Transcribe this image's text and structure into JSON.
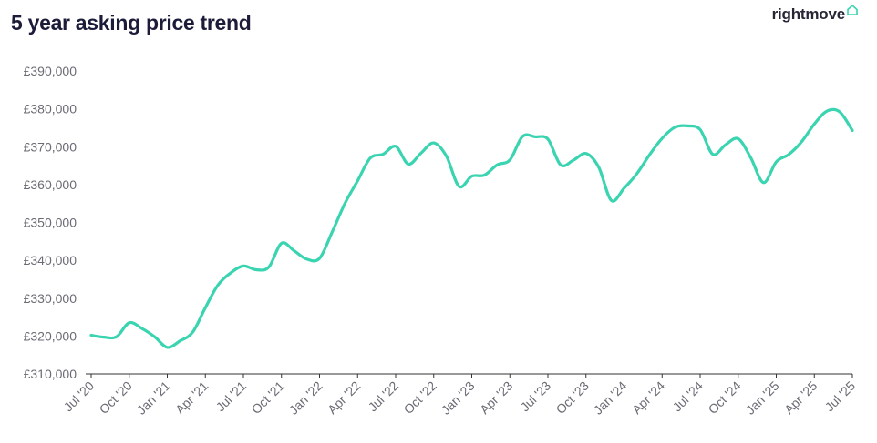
{
  "header": {
    "title": "5 year asking price trend",
    "brand": "rightmove",
    "brand_icon": "house-icon"
  },
  "colors": {
    "line": "#3ad4b1",
    "axis": "#333333",
    "text": "#6b6b75",
    "brand_icon": "#3ad4b1"
  },
  "chart_data": {
    "type": "line",
    "title": "5 year asking price trend",
    "xlabel": "",
    "ylabel": "",
    "grid": false,
    "ylim": [
      310000,
      390000
    ],
    "yticks": [
      310000,
      320000,
      330000,
      340000,
      350000,
      360000,
      370000,
      380000,
      390000
    ],
    "ytick_labels": [
      "£310,000",
      "£320,000",
      "£330,000",
      "£340,000",
      "£350,000",
      "£360,000",
      "£370,000",
      "£380,000",
      "£390,000"
    ],
    "xtick_labels": [
      "Jul '20",
      "Oct '20",
      "Jan '21",
      "Apr '21",
      "Jul '21",
      "Oct '21",
      "Jan '22",
      "Apr '22",
      "Jul '22",
      "Oct '22",
      "Jan '23",
      "Apr '23",
      "Jul '23",
      "Oct '23",
      "Jan '24",
      "Apr '24",
      "Jul '24",
      "Oct '24",
      "Jan '25",
      "Apr '25",
      "Jul '25"
    ],
    "x_unit": "month",
    "series": [
      {
        "x": [
          "2020-07",
          "2020-08",
          "2020-09",
          "2020-10",
          "2020-11",
          "2020-12",
          "2021-01",
          "2021-02",
          "2021-03",
          "2021-04",
          "2021-05",
          "2021-06",
          "2021-07",
          "2021-08",
          "2021-09",
          "2021-10",
          "2021-11",
          "2021-12",
          "2022-01",
          "2022-02",
          "2022-03",
          "2022-04",
          "2022-05",
          "2022-06",
          "2022-07",
          "2022-08",
          "2022-09",
          "2022-10",
          "2022-11",
          "2022-12",
          "2023-01",
          "2023-02",
          "2023-03",
          "2023-04",
          "2023-05",
          "2023-06",
          "2023-07",
          "2023-08",
          "2023-09",
          "2023-10",
          "2023-11",
          "2023-12",
          "2024-01",
          "2024-02",
          "2024-03",
          "2024-04",
          "2024-05",
          "2024-06",
          "2024-07",
          "2024-08",
          "2024-09",
          "2024-10",
          "2024-11",
          "2024-12",
          "2025-01",
          "2025-02",
          "2025-03",
          "2025-04",
          "2025-05",
          "2025-06",
          "2025-07"
        ],
        "values": [
          320200,
          319700,
          319800,
          323500,
          322000,
          319800,
          317000,
          318700,
          321000,
          327500,
          333500,
          336700,
          338500,
          337500,
          338200,
          344500,
          342500,
          340300,
          340500,
          347500,
          355000,
          361000,
          367000,
          368000,
          370100,
          365400,
          368300,
          371000,
          367500,
          359500,
          362200,
          362500,
          365200,
          366500,
          372700,
          372600,
          372000,
          365200,
          366400,
          368200,
          364600,
          355800,
          359000,
          362800,
          367800,
          372200,
          375100,
          375500,
          374500,
          368000,
          370500,
          372100,
          367000,
          360500,
          366000,
          368000,
          371300,
          376000,
          379400,
          379200,
          374300
        ]
      }
    ]
  }
}
